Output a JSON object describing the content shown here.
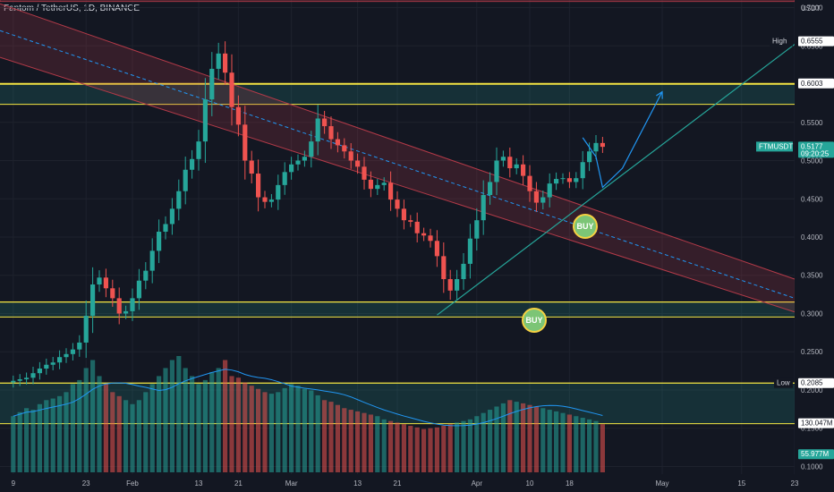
{
  "header": {
    "title": "Fantom / TetherUS, 1D, BINANCE"
  },
  "price_axis": {
    "currency": "USDT",
    "ticks": [
      "0.7000",
      "0.6500",
      "0.5500",
      "0.5000",
      "0.4500",
      "0.4000",
      "0.3500",
      "0.3000",
      "0.2500",
      "0.2000",
      "0.1500",
      "0.1000"
    ],
    "tick_values": [
      0.7,
      0.65,
      0.55,
      0.5,
      0.45,
      0.4,
      0.35,
      0.3,
      0.25,
      0.2,
      0.15,
      0.1
    ],
    "tags": [
      {
        "label": "High",
        "value": "0.6555",
        "price": 0.6555,
        "bg": "#ffffff",
        "fg": "#131722",
        "label_bg": "#131722"
      },
      {
        "label": "",
        "value": "0.6003",
        "price": 0.6003,
        "bg": "#ffffff",
        "fg": "#131722",
        "label_bg": ""
      },
      {
        "label": "FTMUSDT",
        "value": "0.5177",
        "price": 0.5177,
        "sub": "09:20:25",
        "bg": "#26a69a",
        "fg": "#ffffff",
        "label_bg": "#26a69a"
      },
      {
        "label": "Low",
        "value": "0.2085",
        "price": 0.2085,
        "bg": "#ffffff",
        "fg": "#131722",
        "label_bg": "#131722"
      },
      {
        "label": "",
        "value": "130.047M",
        "price": 0.156,
        "bg": "#ffffff",
        "fg": "#131722",
        "label_bg": ""
      },
      {
        "label": "",
        "value": "55.977M",
        "price": 0.1155,
        "bg": "#26a69a",
        "fg": "#ffffff",
        "label_bg": ""
      }
    ]
  },
  "time_axis": {
    "labels": [
      "9",
      "23",
      "Feb",
      "13",
      "21",
      "Mar",
      "13",
      "21",
      "Apr",
      "10",
      "18",
      "May",
      "15",
      "23"
    ],
    "bar_index": [
      0,
      11,
      18,
      28,
      34,
      42,
      52,
      58,
      70,
      78,
      84,
      98,
      110,
      118
    ]
  },
  "stickers": [
    {
      "text": "BUY"
    },
    {
      "text": "BUY"
    }
  ],
  "colors": {
    "background": "#131722",
    "up": "#26a69a",
    "down": "#ef5350",
    "zone_yellow": "#f5e642",
    "channel": "#b23a48",
    "trend": "#26a69a",
    "projection": "#2196f3"
  },
  "chart_data": {
    "type": "candlestick",
    "symbol": "FTMUSDT",
    "interval": "1D",
    "exchange": "BINANCE",
    "price_range": [
      0.09,
      0.71
    ],
    "x_range_bars": [
      -2,
      118
    ],
    "last_bar_index": 88,
    "ohlc_start_open": 0.21,
    "candles_close": [
      0.212,
      0.214,
      0.216,
      0.222,
      0.228,
      0.233,
      0.236,
      0.243,
      0.247,
      0.253,
      0.262,
      0.297,
      0.338,
      0.347,
      0.333,
      0.32,
      0.3,
      0.303,
      0.32,
      0.343,
      0.356,
      0.382,
      0.407,
      0.417,
      0.437,
      0.46,
      0.488,
      0.502,
      0.525,
      0.58,
      0.62,
      0.64,
      0.615,
      0.57,
      0.547,
      0.5,
      0.483,
      0.452,
      0.446,
      0.449,
      0.468,
      0.485,
      0.495,
      0.5,
      0.505,
      0.525,
      0.555,
      0.545,
      0.528,
      0.52,
      0.512,
      0.5,
      0.492,
      0.475,
      0.463,
      0.468,
      0.471,
      0.449,
      0.437,
      0.422,
      0.42,
      0.405,
      0.402,
      0.395,
      0.375,
      0.345,
      0.33,
      0.345,
      0.365,
      0.398,
      0.422,
      0.455,
      0.472,
      0.5,
      0.505,
      0.49,
      0.495,
      0.48,
      0.46,
      0.445,
      0.452,
      0.47,
      0.476,
      0.477,
      0.472,
      0.477,
      0.498,
      0.512,
      0.523,
      0.518
    ],
    "volume": [
      70,
      75,
      80,
      78,
      85,
      90,
      92,
      95,
      100,
      110,
      115,
      130,
      140,
      120,
      110,
      100,
      95,
      90,
      85,
      90,
      100,
      110,
      120,
      130,
      140,
      145,
      130,
      120,
      110,
      115,
      125,
      130,
      140,
      120,
      118,
      112,
      108,
      104,
      100,
      98,
      100,
      105,
      110,
      108,
      104,
      102,
      96,
      90,
      88,
      84,
      80,
      78,
      76,
      74,
      72,
      70,
      66,
      64,
      62,
      60,
      58,
      56,
      54,
      55,
      56,
      58,
      60,
      62,
      64,
      66,
      70,
      74,
      78,
      82,
      86,
      90,
      88,
      86,
      84,
      82,
      80,
      78,
      76,
      74,
      72,
      70,
      68,
      66,
      64,
      60
    ],
    "horizontal_zones": [
      {
        "top": 0.6005,
        "bottom": 0.5735
      },
      {
        "top": 0.315,
        "bottom": 0.2955
      },
      {
        "top": 0.209,
        "bottom": 0.156
      }
    ],
    "horizontal_lines": [
      0.6003,
      0.715
    ],
    "channel": {
      "upper": {
        "bar_start": -2,
        "price_start": 0.705,
        "bar_end": 118,
        "price_end": 0.345
      },
      "mid": {
        "bar_start": -2,
        "price_start": 0.67,
        "bar_end": 118,
        "price_end": 0.32
      },
      "lower": {
        "bar_start": -2,
        "price_start": 0.635,
        "bar_end": 118,
        "price_end": 0.302
      }
    },
    "trend_line": {
      "bar_start": 64,
      "price_start": 0.298,
      "bar_end": 118,
      "price_end": 0.652
    },
    "projection_path": [
      {
        "bar": 86,
        "price": 0.53
      },
      {
        "bar": 88,
        "price": 0.505
      },
      {
        "bar": 89,
        "price": 0.465
      },
      {
        "bar": 92,
        "price": 0.49
      },
      {
        "bar": 98,
        "price": 0.59
      }
    ]
  }
}
